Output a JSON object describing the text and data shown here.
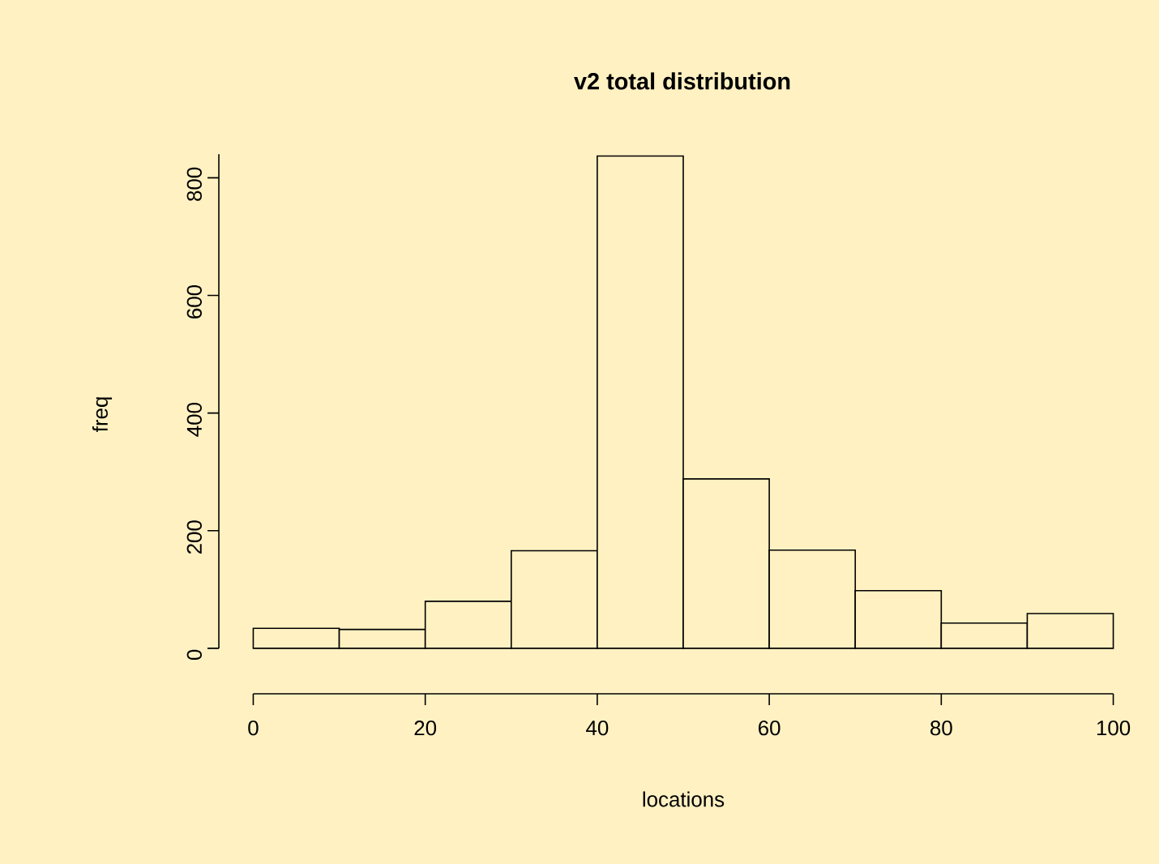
{
  "chart_data": {
    "type": "histogram",
    "title": "v2 total distribution",
    "xlabel": "locations",
    "ylabel": "freq",
    "bins": [
      0,
      10,
      20,
      30,
      40,
      50,
      60,
      70,
      80,
      90,
      100
    ],
    "values": [
      34,
      32,
      80,
      166,
      837,
      288,
      167,
      98,
      43,
      59
    ],
    "xlim": [
      0,
      100
    ],
    "ylim": [
      0,
      840
    ],
    "xticks": [
      0,
      20,
      40,
      60,
      80,
      100
    ],
    "yticks": [
      0,
      200,
      400,
      600,
      800
    ],
    "grid": false
  }
}
